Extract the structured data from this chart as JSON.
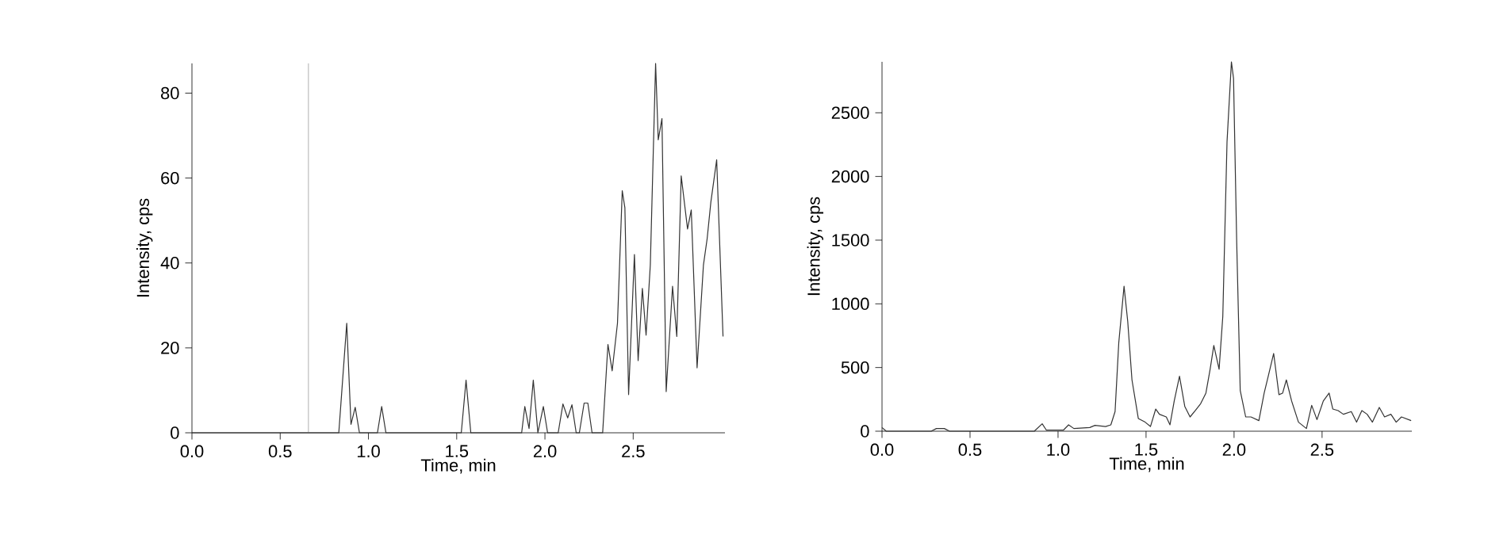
{
  "chart_data": [
    {
      "type": "line",
      "xlabel": "Time, min",
      "ylabel": "Intensity, cps",
      "xlim": [
        0,
        3.02
      ],
      "ylim": [
        0,
        87
      ],
      "xticks": [
        {
          "value": 0,
          "label": "0.0"
        },
        {
          "value": 0.5,
          "label": "0.5"
        },
        {
          "value": 1,
          "label": "1.0"
        },
        {
          "value": 1.5,
          "label": "1.5"
        },
        {
          "value": 2,
          "label": "2.0"
        },
        {
          "value": 2.5,
          "label": "2.5"
        }
      ],
      "yticks": [
        0,
        20,
        40,
        60,
        80
      ],
      "ref_lines": [
        {
          "axis": "x",
          "value": 0.66,
          "color": "#999999"
        }
      ],
      "series": [
        {
          "color": "#333333",
          "x": [
            0,
            0.832,
            0.877,
            0.901,
            0.925,
            0.949,
            1.051,
            1.075,
            1.099,
            1.526,
            1.553,
            1.58,
            1.868,
            1.886,
            1.91,
            1.934,
            1.96,
            1.991,
            2.015,
            2.075,
            2.102,
            2.129,
            2.153,
            2.177,
            2.195,
            2.222,
            2.243,
            2.267,
            2.327,
            2.357,
            2.381,
            2.411,
            2.438,
            2.453,
            2.474,
            2.507,
            2.528,
            2.552,
            2.573,
            2.597,
            2.627,
            2.642,
            2.663,
            2.687,
            2.723,
            2.747,
            2.772,
            2.808,
            2.829,
            2.862,
            2.898,
            2.919,
            2.94,
            2.973,
            3.009
          ],
          "values": [
            0,
            0,
            25.8,
            2,
            6,
            0,
            0,
            6.2,
            0,
            0,
            12.4,
            0,
            0,
            6.2,
            1,
            12.4,
            0,
            6.2,
            0,
            0,
            6.8,
            3.5,
            6.6,
            0,
            0,
            7,
            7,
            0,
            0,
            20.8,
            14.6,
            25.8,
            57,
            53,
            9,
            42,
            17,
            34,
            23,
            39.5,
            87,
            69,
            74,
            9.7,
            34.5,
            22.7,
            60.5,
            48,
            52.5,
            15.3,
            39.5,
            45.7,
            54.3,
            64.3,
            22.7
          ]
        }
      ]
    },
    {
      "type": "line",
      "xlabel": "Time, min",
      "ylabel": "Intensity, cps",
      "xlim": [
        0,
        3.01
      ],
      "ylim": [
        0,
        2900
      ],
      "xticks": [
        {
          "value": 0,
          "label": "0.0"
        },
        {
          "value": 0.5,
          "label": "0.5"
        },
        {
          "value": 1,
          "label": "1.0"
        },
        {
          "value": 1.5,
          "label": "1.5"
        },
        {
          "value": 2,
          "label": "2.0"
        },
        {
          "value": 2.5,
          "label": "2.5"
        }
      ],
      "yticks": [
        0,
        500,
        1000,
        1500,
        2000,
        2500
      ],
      "series": [
        {
          "color": "#333333",
          "x": [
            0,
            0.024,
            0.279,
            0.309,
            0.354,
            0.384,
            0.865,
            0.91,
            0.934,
            1.03,
            1.06,
            1.09,
            1.18,
            1.21,
            1.27,
            1.3,
            1.324,
            1.345,
            1.375,
            1.396,
            1.42,
            1.456,
            1.495,
            1.525,
            1.555,
            1.576,
            1.615,
            1.636,
            1.66,
            1.69,
            1.72,
            1.75,
            1.78,
            1.81,
            1.84,
            1.864,
            1.885,
            1.915,
            1.936,
            1.96,
            1.985,
            1.997,
            2.015,
            2.035,
            2.066,
            2.096,
            2.141,
            2.171,
            2.195,
            2.225,
            2.255,
            2.276,
            2.297,
            2.327,
            2.366,
            2.411,
            2.441,
            2.471,
            2.507,
            2.54,
            2.561,
            2.591,
            2.621,
            2.666,
            2.696,
            2.726,
            2.756,
            2.786,
            2.825,
            2.855,
            2.891,
            2.921,
            2.951,
            3.006
          ],
          "values": [
            29,
            0,
            0,
            21,
            21,
            0,
            0,
            58,
            8,
            8,
            50,
            21,
            29,
            46,
            37,
            50,
            154,
            694,
            1138,
            860,
            403,
            100,
            71,
            37,
            174,
            133,
            112,
            50,
            237,
            432,
            195,
            112,
            162,
            216,
            299,
            486,
            673,
            486,
            901,
            2272,
            2900,
            2770,
            1483,
            320,
            112,
            112,
            83,
            299,
            436,
            610,
            287,
            299,
            403,
            237,
            71,
            21,
            203,
            91,
            237,
            299,
            174,
            162,
            133,
            154,
            71,
            162,
            133,
            71,
            187,
            112,
            133,
            71,
            112,
            83
          ]
        }
      ]
    }
  ]
}
